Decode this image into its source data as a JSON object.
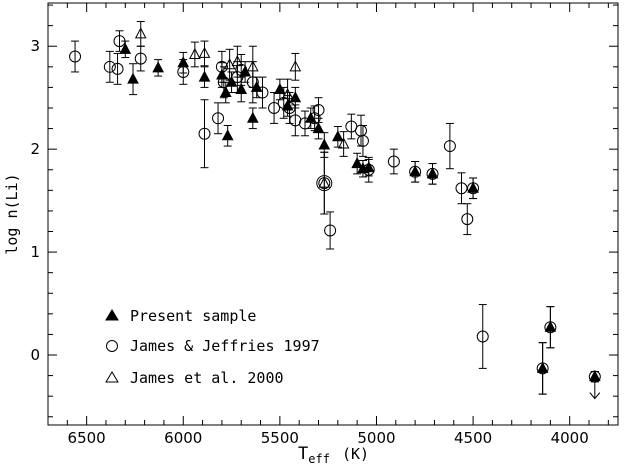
{
  "chart_data": {
    "type": "scatter",
    "xlabel_main": "T",
    "xlabel_sub": "eff",
    "xlabel_unit": "(K)",
    "ylabel": "log n(Li)",
    "xlim": [
      6700,
      3750
    ],
    "ylim": [
      -0.68,
      3.42
    ],
    "x_ticks": [
      6500,
      6000,
      5500,
      5000,
      4500,
      4000
    ],
    "x_tick_labels": [
      "6500",
      "6000",
      "5500",
      "5000",
      "4500",
      "4000"
    ],
    "y_ticks": [
      0,
      1,
      2,
      3
    ],
    "y_tick_labels": [
      "0",
      "1",
      "2",
      "3"
    ],
    "grid": false,
    "legend_position": "bottom-left",
    "legend": [
      {
        "marker": "filled-triangle",
        "label": "Present sample"
      },
      {
        "marker": "open-circle",
        "label": "James & Jeffries 1997"
      },
      {
        "marker": "open-triangle",
        "label": "James et al. 2000"
      }
    ],
    "series": [
      {
        "name": "Present sample",
        "marker": "filled-triangle",
        "points": [
          {
            "x": 6300,
            "y": 2.97,
            "err": 0.08
          },
          {
            "x": 6260,
            "y": 2.68,
            "err": 0.15
          },
          {
            "x": 6130,
            "y": 2.79,
            "err": 0.08
          },
          {
            "x": 6000,
            "y": 2.84,
            "err": 0.1
          },
          {
            "x": 5890,
            "y": 2.7,
            "err": 0.1
          },
          {
            "x": 5800,
            "y": 2.72,
            "err": 0.12
          },
          {
            "x": 5780,
            "y": 2.55,
            "err": 0.1
          },
          {
            "x": 5770,
            "y": 2.13,
            "err": 0.1
          },
          {
            "x": 5750,
            "y": 2.65,
            "err": 0.1
          },
          {
            "x": 5700,
            "y": 2.58,
            "err": 0.12
          },
          {
            "x": 5680,
            "y": 2.75,
            "err": 0.1
          },
          {
            "x": 5640,
            "y": 2.3,
            "err": 0.1
          },
          {
            "x": 5620,
            "y": 2.6,
            "err": 0.1
          },
          {
            "x": 5500,
            "y": 2.58,
            "err": 0.1
          },
          {
            "x": 5460,
            "y": 2.42,
            "err": 0.1
          },
          {
            "x": 5420,
            "y": 2.5,
            "err": 0.1
          },
          {
            "x": 5340,
            "y": 2.3,
            "err": 0.1
          },
          {
            "x": 5300,
            "y": 2.2,
            "err": 0.1
          },
          {
            "x": 5270,
            "y": 2.04,
            "err": 0.12
          },
          {
            "x": 5200,
            "y": 2.12,
            "err": 0.1
          },
          {
            "x": 5100,
            "y": 1.86,
            "err": 0.1
          },
          {
            "x": 5070,
            "y": 1.81,
            "err": 0.08
          },
          {
            "x": 5040,
            "y": 1.82,
            "err": 0.08
          },
          {
            "x": 4800,
            "y": 1.78,
            "err": 0.1
          },
          {
            "x": 4710,
            "y": 1.76,
            "err": 0.1
          },
          {
            "x": 4500,
            "y": 1.62,
            "err": 0.1
          },
          {
            "x": 4140,
            "y": -0.13,
            "err": 0.25
          },
          {
            "x": 4100,
            "y": 0.27,
            "err": 0.2
          },
          {
            "x": 3870,
            "y": -0.21,
            "err": 0.05
          }
        ]
      },
      {
        "name": "James & Jeffries 1997",
        "marker": "open-circle",
        "points": [
          {
            "x": 6560,
            "y": 2.9,
            "err": 0.15
          },
          {
            "x": 6380,
            "y": 2.8,
            "err": 0.15
          },
          {
            "x": 6340,
            "y": 2.78,
            "err": 0.15
          },
          {
            "x": 6330,
            "y": 3.05,
            "err": 0.1
          },
          {
            "x": 6220,
            "y": 2.88,
            "err": 0.12
          },
          {
            "x": 6000,
            "y": 2.75,
            "err": 0.12
          },
          {
            "x": 5890,
            "y": 2.15,
            "err": 0.33
          },
          {
            "x": 5820,
            "y": 2.3,
            "err": 0.15
          },
          {
            "x": 5800,
            "y": 2.8,
            "err": 0.15
          },
          {
            "x": 5790,
            "y": 2.65,
            "err": 0.15
          },
          {
            "x": 5720,
            "y": 2.7,
            "err": 0.15
          },
          {
            "x": 5700,
            "y": 2.77,
            "err": 0.15
          },
          {
            "x": 5640,
            "y": 2.65,
            "err": 0.2
          },
          {
            "x": 5590,
            "y": 2.55,
            "err": 0.15
          },
          {
            "x": 5530,
            "y": 2.4,
            "err": 0.15
          },
          {
            "x": 5480,
            "y": 2.45,
            "err": 0.15
          },
          {
            "x": 5450,
            "y": 2.4,
            "err": 0.15
          },
          {
            "x": 5420,
            "y": 2.28,
            "err": 0.15
          },
          {
            "x": 5370,
            "y": 2.25,
            "err": 0.12
          },
          {
            "x": 5320,
            "y": 2.3,
            "err": 0.12
          },
          {
            "x": 5300,
            "y": 2.38,
            "err": 0.12
          },
          {
            "x": 5270,
            "y": 1.67,
            "err": 0.3
          },
          {
            "x": 5240,
            "y": 1.21,
            "err": 0.18
          },
          {
            "x": 5130,
            "y": 2.22,
            "err": 0.12
          },
          {
            "x": 5080,
            "y": 2.18,
            "err": 0.15
          },
          {
            "x": 5070,
            "y": 2.08,
            "err": 0.15
          },
          {
            "x": 5040,
            "y": 1.8,
            "err": 0.12
          },
          {
            "x": 4910,
            "y": 1.88,
            "err": 0.12
          },
          {
            "x": 4800,
            "y": 1.78,
            "err": 0.1
          },
          {
            "x": 4710,
            "y": 1.76,
            "err": 0.1
          },
          {
            "x": 4620,
            "y": 2.03,
            "err": 0.22
          },
          {
            "x": 4560,
            "y": 1.62,
            "err": 0.15
          },
          {
            "x": 4530,
            "y": 1.32,
            "err": 0.15
          },
          {
            "x": 4500,
            "y": 1.62,
            "err": 0.1
          },
          {
            "x": 4450,
            "y": 0.18,
            "err": 0.31
          },
          {
            "x": 4140,
            "y": -0.13,
            "err": 0.25
          },
          {
            "x": 4100,
            "y": 0.27,
            "err": 0.2
          },
          {
            "x": 3870,
            "y": -0.21,
            "err": 0.05
          }
        ]
      },
      {
        "name": "James et al. 2000",
        "marker": "open-triangle",
        "points": [
          {
            "x": 6220,
            "y": 3.12,
            "err": 0.12
          },
          {
            "x": 5940,
            "y": 2.92,
            "err": 0.12
          },
          {
            "x": 5890,
            "y": 2.93,
            "err": 0.12
          },
          {
            "x": 5760,
            "y": 2.82,
            "err": 0.15
          },
          {
            "x": 5720,
            "y": 2.85,
            "err": 0.15
          },
          {
            "x": 5640,
            "y": 2.8,
            "err": 0.2
          },
          {
            "x": 5460,
            "y": 2.53,
            "err": 0.15
          },
          {
            "x": 5420,
            "y": 2.8,
            "err": 0.13
          },
          {
            "x": 5270,
            "y": 1.67,
            "err": 0.3
          },
          {
            "x": 5170,
            "y": 2.05,
            "err": 0.12
          }
        ]
      }
    ],
    "upper_limits": [
      {
        "x": 3870,
        "y": -0.21
      }
    ]
  }
}
